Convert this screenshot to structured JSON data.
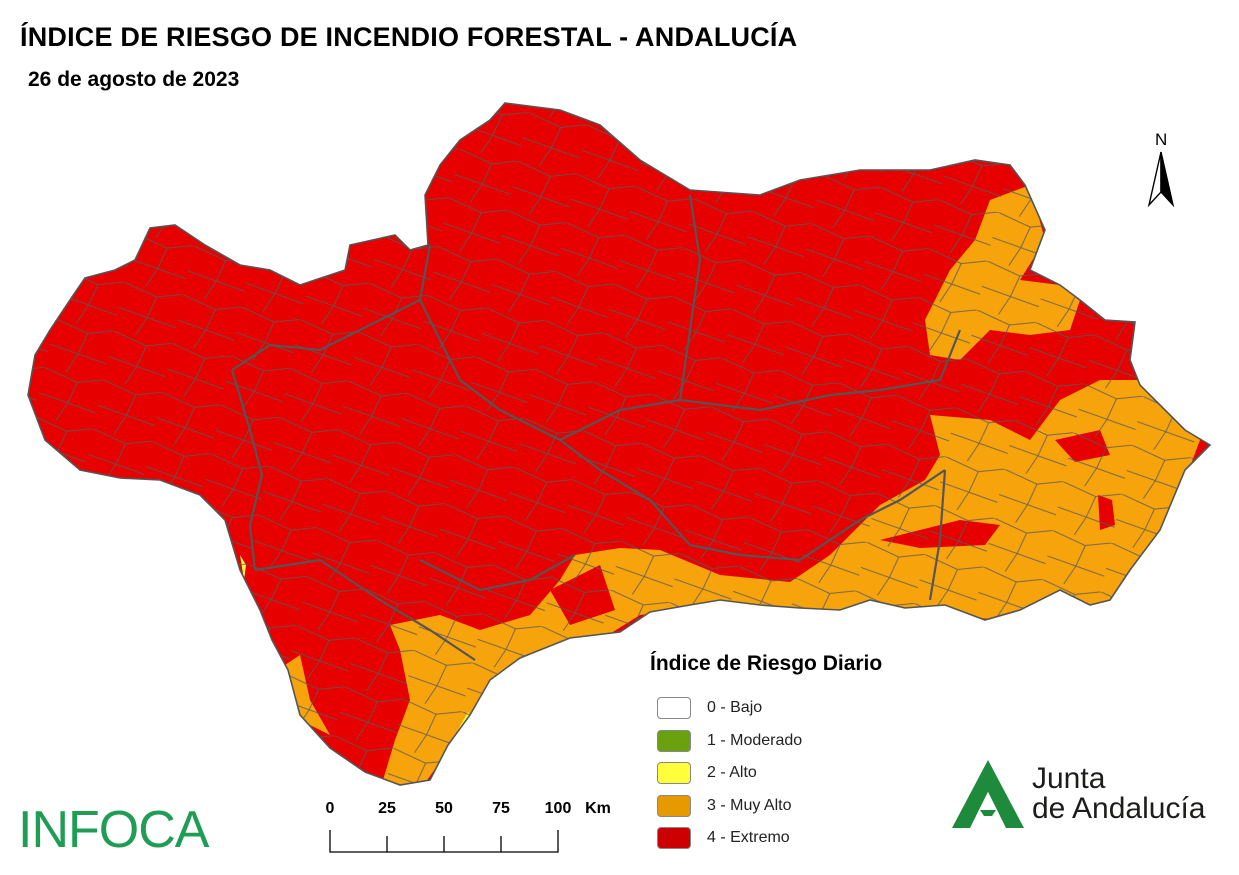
{
  "title": "ÍNDICE DE RIESGO DE INCENDIO FORESTAL - ANDALUCÍA",
  "date": "26 de agosto de 2023",
  "north_label": "N",
  "legend": {
    "title": "Índice de Riesgo Diario",
    "items": [
      {
        "label": "0 - Bajo",
        "color": "#ffffff"
      },
      {
        "label": "1 - Moderado",
        "color": "#6aa20f"
      },
      {
        "label": "2 - Alto",
        "color": "#ffff3c"
      },
      {
        "label": "3 - Muy Alto",
        "color": "#e69a00"
      },
      {
        "label": "4 - Extremo",
        "color": "#cc0000"
      }
    ]
  },
  "scalebar": {
    "ticks": [
      "0",
      "25",
      "50",
      "75",
      "100"
    ],
    "unit": "Km"
  },
  "region_colors": {
    "extremo": "#e60000",
    "muy_alto": "#f7a40c",
    "alto": "#ffff3c",
    "border": "#5a5a5a"
  },
  "infoca_logo": "INFOCA",
  "junta_logo": {
    "line1": "Junta",
    "line2": "de Andalucía",
    "color": "#1e8a3c"
  }
}
